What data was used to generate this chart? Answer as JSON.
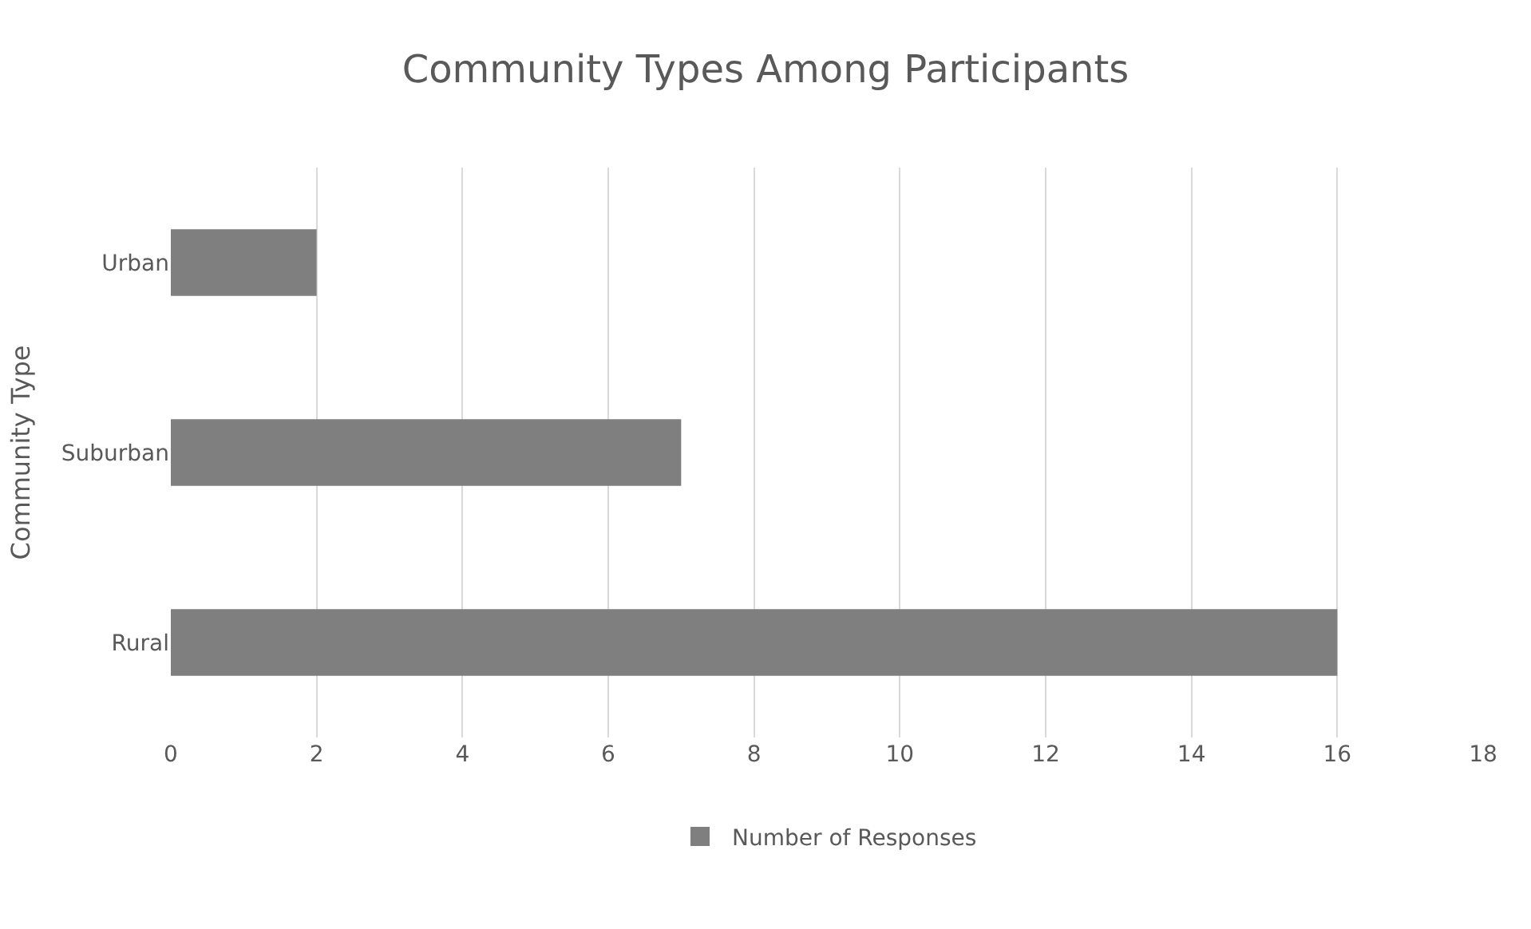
{
  "chart_data": {
    "type": "bar",
    "orientation": "horizontal",
    "title": "Community Types Among Participants",
    "ylabel": "Community Type",
    "categories": [
      "Urban",
      "Suburban",
      "Rural"
    ],
    "series": [
      {
        "name": "Number of Responses",
        "color": "#7f7f7f",
        "values": [
          2,
          7,
          16
        ]
      }
    ],
    "xlim": [
      0,
      18
    ],
    "xticks": [
      0,
      2,
      4,
      6,
      8,
      10,
      12,
      14,
      16,
      18
    ],
    "grid": "x",
    "legend": "bottom"
  }
}
